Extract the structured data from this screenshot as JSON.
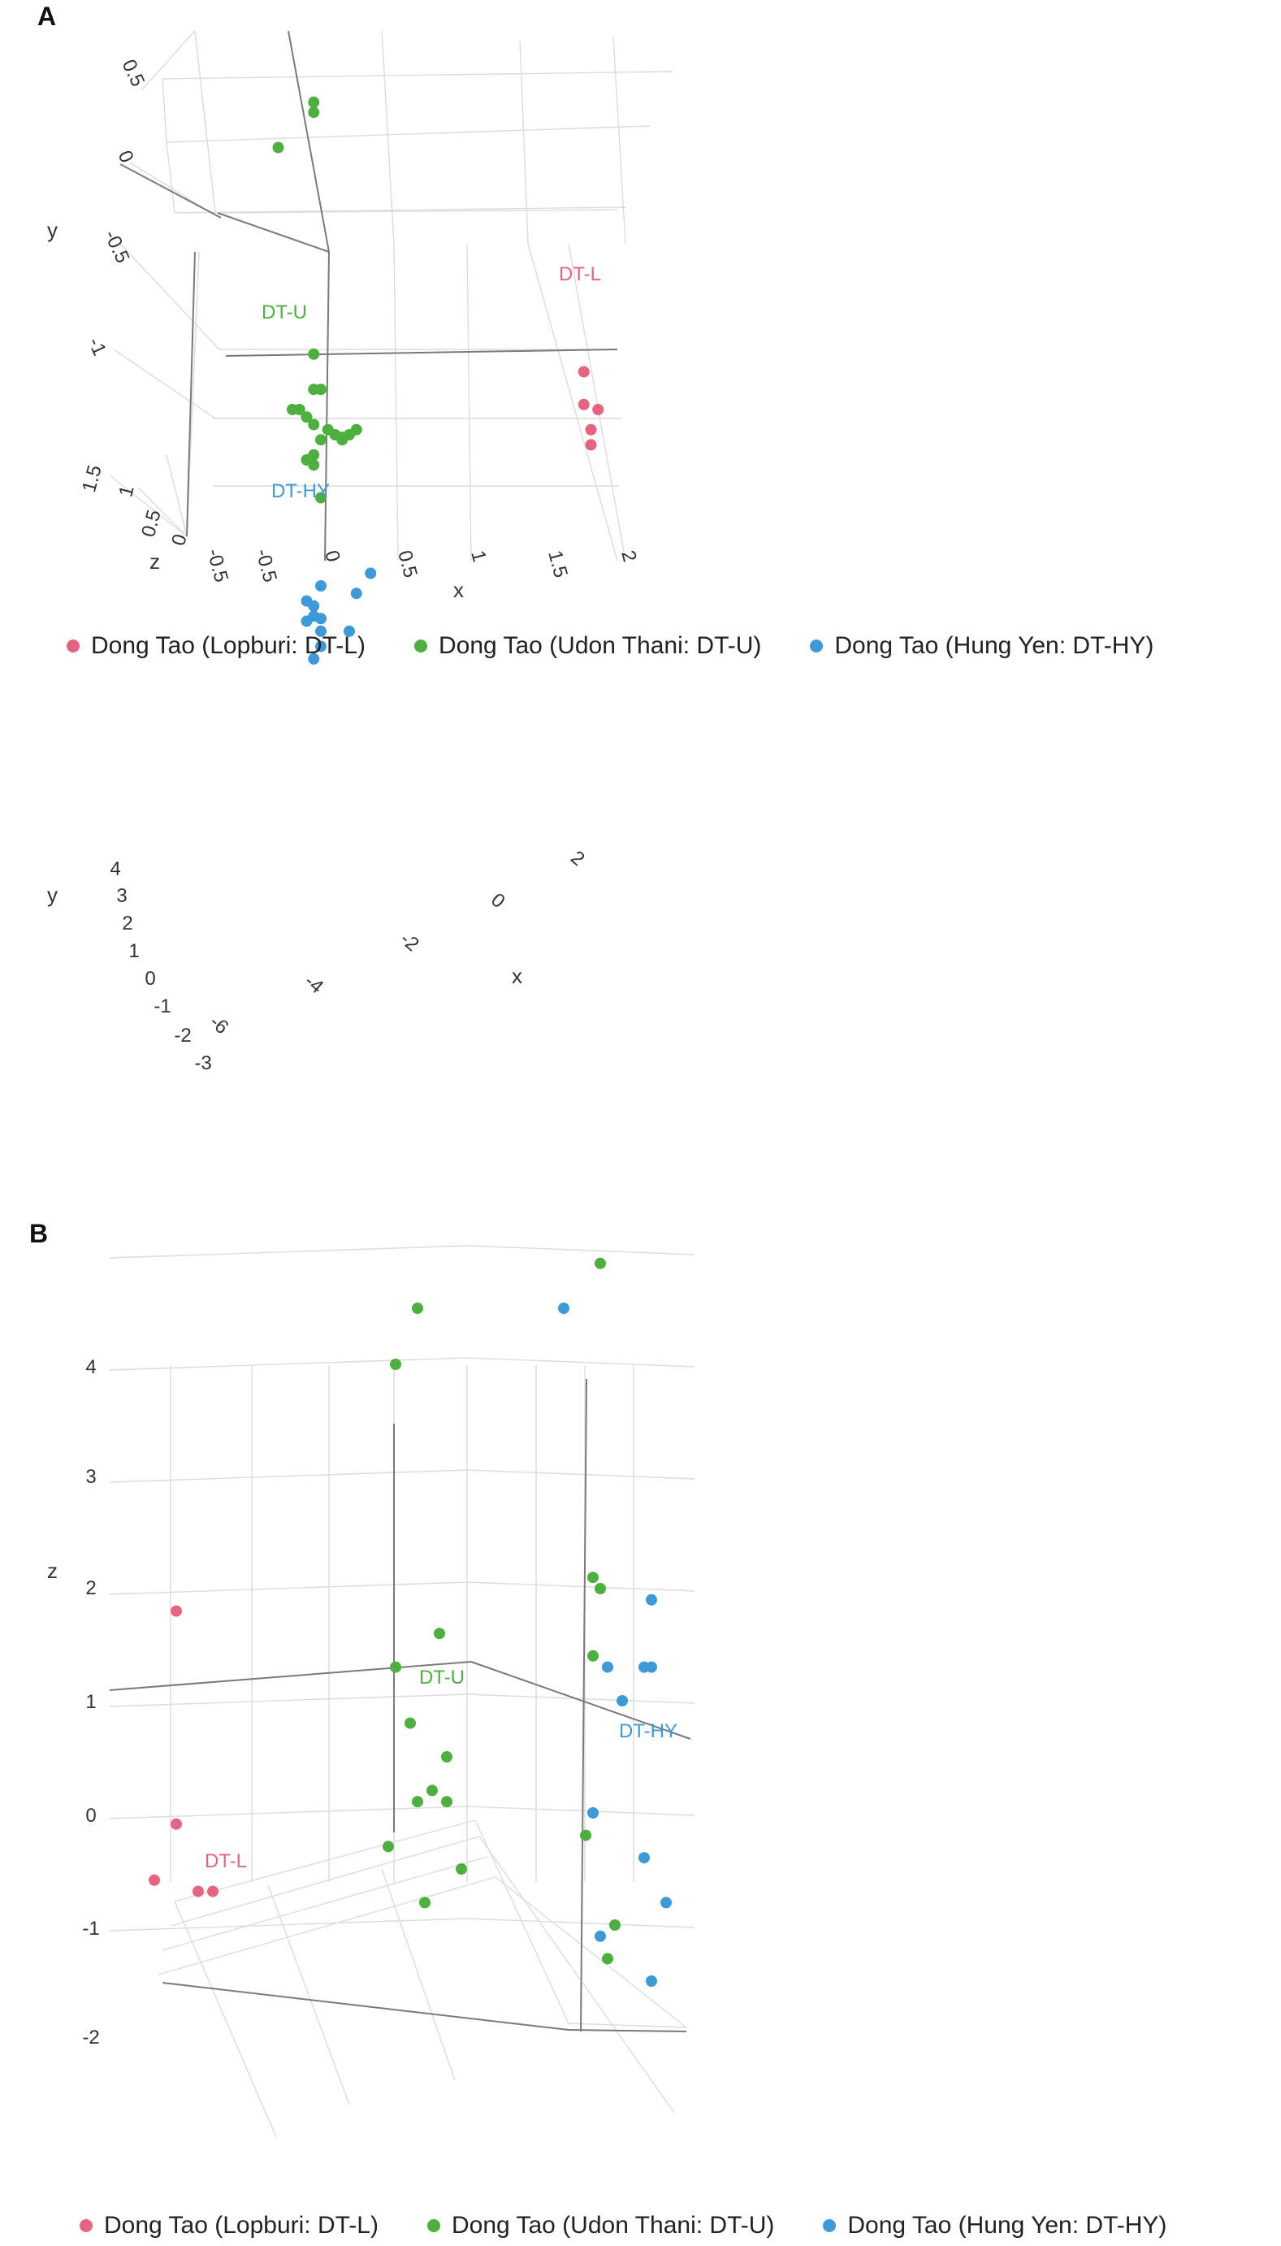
{
  "colors": {
    "dt_l": "#E8637F",
    "dt_u": "#4CAF3E",
    "dt_hy": "#3C9AD9"
  },
  "chart_data": [
    {
      "panel": "A",
      "type": "scatter",
      "title": "",
      "x_label": "x",
      "y_label": "y",
      "z_label": "z",
      "x_ticks": [
        "-0.5",
        "-0.5",
        "0",
        "0.5",
        "1",
        "1.5",
        "2"
      ],
      "y_ticks": [
        "0.5",
        "0",
        "-0.5",
        "-1"
      ],
      "z_ticks": [
        "1.5",
        "1",
        "0.5",
        "0"
      ],
      "series": [
        {
          "name": "Dong Tao (Lopburi: DT-L)",
          "label": "DT-L",
          "color_key": "dt_l",
          "points": [
            [
              1.85,
              -0.45
            ],
            [
              1.85,
              -0.58
            ],
            [
              1.95,
              -0.6
            ],
            [
              1.9,
              -0.68
            ],
            [
              1.9,
              -0.74
            ]
          ]
        },
        {
          "name": "Dong Tao (Udon Thani: DT-U)",
          "label": "DT-U",
          "color_key": "dt_u",
          "points": [
            [
              -0.05,
              0.62
            ],
            [
              -0.05,
              0.58
            ],
            [
              -0.3,
              0.44
            ],
            [
              -0.05,
              -0.38
            ],
            [
              -0.05,
              -0.52
            ],
            [
              0.0,
              -0.52
            ],
            [
              -0.2,
              -0.6
            ],
            [
              -0.15,
              -0.6
            ],
            [
              -0.1,
              -0.63
            ],
            [
              -0.05,
              -0.66
            ],
            [
              0.05,
              -0.68
            ],
            [
              0.1,
              -0.7
            ],
            [
              0.15,
              -0.72
            ],
            [
              0.0,
              -0.72
            ],
            [
              0.2,
              -0.7
            ],
            [
              0.25,
              -0.68
            ],
            [
              0.15,
              -0.71
            ],
            [
              -0.05,
              -0.78
            ],
            [
              -0.1,
              -0.8
            ],
            [
              -0.05,
              -0.82
            ],
            [
              0.0,
              -0.95
            ]
          ]
        },
        {
          "name": "Dong Tao (Hung Yen: DT-HY)",
          "label": "DT-HY",
          "color_key": "dt_hy",
          "points": [
            [
              0.35,
              -1.25
            ],
            [
              0.0,
              -1.3
            ],
            [
              0.25,
              -1.33
            ],
            [
              -0.1,
              -1.36
            ],
            [
              -0.05,
              -1.38
            ],
            [
              -0.05,
              -1.42
            ],
            [
              0.0,
              -1.43
            ],
            [
              -0.1,
              -1.44
            ],
            [
              0.0,
              -1.48
            ],
            [
              0.2,
              -1.48
            ],
            [
              0.0,
              -1.54
            ],
            [
              -0.05,
              -1.59
            ]
          ]
        }
      ]
    },
    {
      "panel": "B",
      "type": "scatter",
      "title": "",
      "x_label": "x",
      "y_label": "y",
      "z_label": "z",
      "x_ticks": [
        "-6",
        "-4",
        "-2",
        "0",
        "2"
      ],
      "y_ticks": [
        "4",
        "3",
        "2",
        "1",
        "0",
        "-1",
        "-2",
        "-3"
      ],
      "z_ticks": [
        "4",
        "3",
        "2",
        "1",
        "0",
        "-1",
        "-2"
      ],
      "series": [
        {
          "name": "Dong Tao (Lopburi: DT-L)",
          "label": "DT-L",
          "color_key": "dt_l",
          "points": [
            [
              -5.5,
              0.8
            ],
            [
              -5.5,
              -1.1
            ],
            [
              -5.8,
              -1.6
            ],
            [
              -5.2,
              -1.7
            ],
            [
              -5.0,
              -1.7
            ]
          ]
        },
        {
          "name": "Dong Tao (Udon Thani: DT-U)",
          "label": "DT-U",
          "color_key": "dt_u",
          "points": [
            [
              -2.2,
              3.5
            ],
            [
              -2.5,
              3.0
            ],
            [
              -1.9,
              0.6
            ],
            [
              -2.5,
              0.3
            ],
            [
              -2.3,
              -0.2
            ],
            [
              -1.8,
              -0.5
            ],
            [
              -2.0,
              -0.8
            ],
            [
              -1.8,
              -0.9
            ],
            [
              -2.2,
              -0.9
            ],
            [
              -2.6,
              -1.3
            ],
            [
              -1.6,
              -1.5
            ],
            [
              -2.1,
              -1.8
            ],
            [
              0.3,
              3.9
            ],
            [
              0.2,
              1.1
            ],
            [
              0.3,
              1.0
            ],
            [
              0.2,
              0.4
            ],
            [
              0.1,
              -1.2
            ],
            [
              0.5,
              -2.0
            ],
            [
              0.4,
              -2.3
            ]
          ]
        },
        {
          "name": "Dong Tao (Hung Yen: DT-HY)",
          "label": "DT-HY",
          "color_key": "dt_hy",
          "points": [
            [
              -0.2,
              3.5
            ],
            [
              1.0,
              0.9
            ],
            [
              0.4,
              0.3
            ],
            [
              0.9,
              0.3
            ],
            [
              1.0,
              0.3
            ],
            [
              0.6,
              0.0
            ],
            [
              0.2,
              -1.0
            ],
            [
              0.9,
              -1.4
            ],
            [
              1.2,
              -1.8
            ],
            [
              0.3,
              -2.1
            ],
            [
              1.0,
              -2.5
            ]
          ]
        }
      ]
    }
  ]
}
